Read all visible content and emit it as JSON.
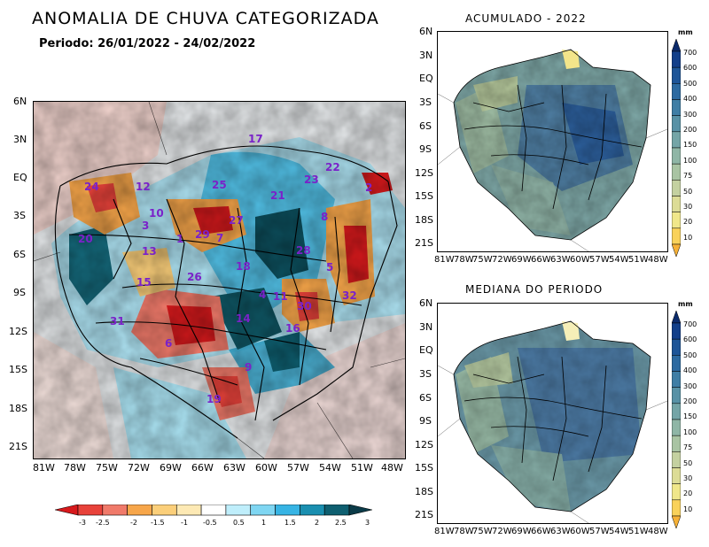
{
  "main_title": "ANOMALIA DE CHUVA CATEGORIZADA",
  "period_label": "Periodo: 26/01/2022 - 24/02/2022",
  "top_right_title": "ACUMULADO - 2022",
  "bottom_right_title": "MEDIANA DO PERIODO",
  "lat_ticks": [
    "6N",
    "3N",
    "EQ",
    "3S",
    "6S",
    "9S",
    "12S",
    "15S",
    "18S",
    "21S"
  ],
  "lon_ticks": [
    "81W",
    "78W",
    "75W",
    "72W",
    "69W",
    "66W",
    "63W",
    "60W",
    "57W",
    "54W",
    "51W",
    "48W"
  ],
  "unit": "mm",
  "anomaly_scale": {
    "labels": [
      "-3",
      "-2.5",
      "-2",
      "-1.5",
      "-1",
      "-0.5",
      "0.5",
      "1",
      "1.5",
      "2",
      "2.5",
      "3"
    ],
    "colors": [
      "#d7191c",
      "#e8423a",
      "#f07a6a",
      "#f7a64a",
      "#fbcf7a",
      "#fde9b4",
      "#ffffff",
      "#bfeefb",
      "#7fd6f2",
      "#37b4e4",
      "#1a8fb0",
      "#0e5f70",
      "#0b3b48"
    ]
  },
  "precip_scale": {
    "labels": [
      "700",
      "600",
      "500",
      "400",
      "300",
      "200",
      "150",
      "100",
      "75",
      "50",
      "30",
      "20",
      "10"
    ],
    "colors": [
      "#0b2a6b",
      "#123f8a",
      "#1d5598",
      "#2c6aa1",
      "#3f7ea5",
      "#5892a6",
      "#74a5a7",
      "#8fb6a6",
      "#a9c4a3",
      "#c4d1a0",
      "#dcdc96",
      "#f0e78a",
      "#f9d25a",
      "#f6b136"
    ]
  },
  "basin_numbers": [
    {
      "n": "24"
    },
    {
      "n": "12"
    },
    {
      "n": "25"
    },
    {
      "n": "21"
    },
    {
      "n": "23"
    },
    {
      "n": "22"
    },
    {
      "n": "2"
    },
    {
      "n": "10"
    },
    {
      "n": "3"
    },
    {
      "n": "27"
    },
    {
      "n": "8"
    },
    {
      "n": "20"
    },
    {
      "n": "13"
    },
    {
      "n": "1"
    },
    {
      "n": "29"
    },
    {
      "n": "7"
    },
    {
      "n": "28"
    },
    {
      "n": "18"
    },
    {
      "n": "5"
    },
    {
      "n": "31"
    },
    {
      "n": "15"
    },
    {
      "n": "26"
    },
    {
      "n": "4"
    },
    {
      "n": "32"
    },
    {
      "n": "30"
    },
    {
      "n": "14"
    },
    {
      "n": "11"
    },
    {
      "n": "16"
    },
    {
      "n": "6"
    },
    {
      "n": "9"
    },
    {
      "n": "19"
    },
    {
      "n": "17"
    }
  ]
}
